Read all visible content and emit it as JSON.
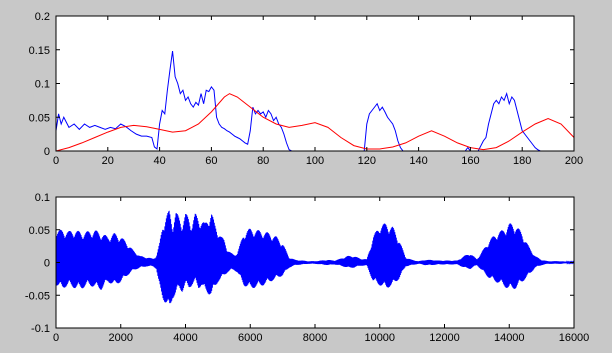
{
  "figure": {
    "background": "#c8c8c8",
    "axes_background": "#ffffff"
  },
  "chart_data": [
    {
      "type": "line",
      "title": "",
      "xlabel": "",
      "ylabel": "",
      "xlim": [
        0,
        200
      ],
      "ylim": [
        0,
        0.2
      ],
      "xticks": [
        0,
        20,
        40,
        60,
        80,
        100,
        120,
        140,
        160,
        180,
        200
      ],
      "yticks": [
        0,
        0.05,
        0.1,
        0.15,
        0.2
      ],
      "xtick_labels": [
        "0",
        "20",
        "40",
        "60",
        "80",
        "100",
        "120",
        "140",
        "160",
        "180",
        "200"
      ],
      "ytick_labels": [
        "0",
        "0.05",
        "0.1",
        "0.15",
        "0.2"
      ],
      "grid": false,
      "series": [
        {
          "color": "#0000ff",
          "x": [
            0,
            1,
            2,
            3,
            5,
            7,
            9,
            11,
            13,
            15,
            17,
            19,
            21,
            23,
            25,
            27,
            29,
            31,
            33,
            35,
            37,
            38,
            39,
            40,
            41,
            42,
            43,
            44,
            45,
            46,
            47,
            48,
            49,
            50,
            51,
            52,
            53,
            54,
            55,
            56,
            57,
            58,
            59,
            60,
            61,
            62,
            63,
            64,
            65,
            66,
            67,
            68,
            69,
            70,
            71,
            72,
            73,
            74,
            75,
            76,
            77,
            78,
            79,
            80,
            81,
            82,
            83,
            84,
            85,
            86,
            87,
            88,
            89,
            90,
            91,
            92,
            95,
            100,
            105,
            110,
            115,
            119,
            120,
            121,
            122,
            123,
            124,
            125,
            126,
            127,
            128,
            129,
            130,
            131,
            132,
            133,
            134,
            136,
            140,
            145,
            150,
            155,
            158,
            159,
            160,
            161,
            163,
            165,
            166,
            167,
            168,
            169,
            170,
            171,
            172,
            173,
            174,
            175,
            176,
            177,
            178,
            179,
            180,
            181,
            182,
            183,
            184,
            185,
            186,
            187,
            188,
            189,
            190,
            195,
            200
          ],
          "y": [
            0.03,
            0.055,
            0.04,
            0.05,
            0.035,
            0.04,
            0.032,
            0.04,
            0.035,
            0.038,
            0.035,
            0.032,
            0.035,
            0.033,
            0.04,
            0.036,
            0.03,
            0.025,
            0.022,
            0.022,
            0.02,
            0.006,
            0.003,
            0.04,
            0.06,
            0.055,
            0.09,
            0.12,
            0.148,
            0.11,
            0.1,
            0.085,
            0.09,
            0.075,
            0.08,
            0.07,
            0.065,
            0.072,
            0.068,
            0.085,
            0.07,
            0.09,
            0.088,
            0.095,
            0.09,
            0.05,
            0.04,
            0.035,
            0.033,
            0.03,
            0.028,
            0.025,
            0.022,
            0.02,
            0.018,
            0.015,
            0.012,
            0.01,
            0.03,
            0.065,
            0.055,
            0.06,
            0.055,
            0.058,
            0.05,
            0.06,
            0.055,
            0.045,
            0.05,
            0.04,
            0.035,
            0.025,
            0.012,
            0.002,
            0.0,
            0.0,
            0.0,
            0.0,
            0.0,
            0.0,
            0.0,
            0.0,
            0.04,
            0.055,
            0.06,
            0.065,
            0.07,
            0.06,
            0.065,
            0.058,
            0.05,
            0.045,
            0.04,
            0.03,
            0.015,
            0.005,
            0.0,
            0.0,
            0.0,
            0.0,
            0.0,
            0.0,
            0.0,
            0.005,
            0.0,
            0.0,
            0.0,
            0.015,
            0.02,
            0.04,
            0.055,
            0.07,
            0.075,
            0.07,
            0.08,
            0.075,
            0.085,
            0.07,
            0.08,
            0.075,
            0.06,
            0.045,
            0.03,
            0.025,
            0.02,
            0.015,
            0.01,
            0.005,
            0.002,
            0.0,
            0.0,
            0.0,
            0.0,
            0.0,
            0.0
          ]
        },
        {
          "color": "#ff0000",
          "x": [
            0,
            5,
            10,
            15,
            20,
            25,
            30,
            35,
            40,
            45,
            50,
            55,
            60,
            65,
            67,
            70,
            75,
            80,
            85,
            90,
            95,
            100,
            105,
            110,
            115,
            120,
            125,
            130,
            135,
            140,
            145,
            150,
            155,
            160,
            165,
            170,
            175,
            180,
            185,
            190,
            195,
            200
          ],
          "y": [
            0.0,
            0.005,
            0.012,
            0.02,
            0.028,
            0.035,
            0.038,
            0.036,
            0.032,
            0.028,
            0.03,
            0.04,
            0.058,
            0.08,
            0.085,
            0.08,
            0.065,
            0.05,
            0.04,
            0.035,
            0.038,
            0.042,
            0.035,
            0.02,
            0.008,
            0.003,
            0.003,
            0.006,
            0.012,
            0.022,
            0.03,
            0.022,
            0.012,
            0.005,
            0.002,
            0.005,
            0.015,
            0.028,
            0.04,
            0.048,
            0.04,
            0.02
          ]
        }
      ]
    },
    {
      "type": "line",
      "title": "",
      "xlabel": "",
      "ylabel": "",
      "xlim": [
        0,
        16000
      ],
      "ylim": [
        -0.1,
        0.1
      ],
      "xticks": [
        0,
        2000,
        4000,
        6000,
        8000,
        10000,
        12000,
        14000,
        16000
      ],
      "yticks": [
        -0.1,
        -0.05,
        0,
        0.05,
        0.1
      ],
      "xtick_labels": [
        "0",
        "2000",
        "4000",
        "6000",
        "8000",
        "10000",
        "12000",
        "14000",
        "16000"
      ],
      "ytick_labels": [
        "-0.1",
        "-0.05",
        "0",
        "0.05",
        "0.1"
      ],
      "grid": false,
      "series": [
        {
          "color": "#0000ff",
          "x": [
            0,
            200,
            400,
            600,
            800,
            1000,
            1200,
            1400,
            1600,
            1800,
            2000,
            2200,
            2400,
            2600,
            2800,
            3000,
            3100,
            3200,
            3300,
            3400,
            3500,
            3600,
            3700,
            3800,
            3900,
            4000,
            4100,
            4200,
            4300,
            4400,
            4500,
            4600,
            4700,
            4800,
            4900,
            5000,
            5100,
            5200,
            5300,
            5400,
            5500,
            5600,
            5700,
            5800,
            5900,
            6000,
            6200,
            6400,
            6600,
            6800,
            7000,
            7200,
            7400,
            7600,
            7800,
            8000,
            8200,
            8400,
            8600,
            8800,
            9000,
            9200,
            9400,
            9600,
            9800,
            10000,
            10200,
            10400,
            10600,
            10800,
            11000,
            11200,
            11400,
            11600,
            11800,
            12000,
            12200,
            12400,
            12600,
            12800,
            13000,
            13200,
            13400,
            13600,
            13800,
            14000,
            14200,
            14400,
            14600,
            14800,
            15000,
            15200,
            15400,
            15600,
            15800,
            16000
          ],
          "y_upper": [
            0.05,
            0.05,
            0.048,
            0.05,
            0.046,
            0.048,
            0.05,
            0.045,
            0.04,
            0.045,
            0.04,
            0.03,
            0.018,
            0.01,
            0.008,
            0.006,
            0.01,
            0.03,
            0.06,
            0.072,
            0.08,
            0.06,
            0.078,
            0.07,
            0.062,
            0.075,
            0.07,
            0.06,
            0.075,
            0.07,
            0.065,
            0.06,
            0.07,
            0.078,
            0.06,
            0.05,
            0.04,
            0.035,
            0.02,
            0.015,
            0.012,
            0.015,
            0.03,
            0.045,
            0.05,
            0.052,
            0.05,
            0.048,
            0.045,
            0.04,
            0.03,
            0.008,
            0.004,
            0.003,
            0.002,
            0.002,
            0.003,
            0.004,
            0.003,
            0.006,
            0.01,
            0.01,
            0.006,
            0.005,
            0.04,
            0.058,
            0.06,
            0.055,
            0.035,
            0.008,
            0.004,
            0.002,
            0.004,
            0.004,
            0.003,
            0.003,
            0.003,
            0.003,
            0.01,
            0.014,
            0.005,
            0.02,
            0.035,
            0.045,
            0.05,
            0.06,
            0.058,
            0.045,
            0.025,
            0.01,
            0.004,
            0.002,
            0.002,
            0.002,
            0.001,
            0.001
          ],
          "y_lower": [
            -0.035,
            -0.04,
            -0.035,
            -0.04,
            -0.04,
            -0.035,
            -0.038,
            -0.042,
            -0.03,
            -0.035,
            -0.03,
            -0.02,
            -0.012,
            -0.008,
            -0.006,
            -0.006,
            -0.01,
            -0.04,
            -0.055,
            -0.065,
            -0.075,
            -0.055,
            -0.05,
            -0.04,
            -0.045,
            -0.035,
            -0.04,
            -0.035,
            -0.03,
            -0.04,
            -0.035,
            -0.045,
            -0.048,
            -0.05,
            -0.04,
            -0.03,
            -0.025,
            -0.02,
            -0.015,
            -0.012,
            -0.012,
            -0.015,
            -0.025,
            -0.035,
            -0.038,
            -0.04,
            -0.038,
            -0.035,
            -0.03,
            -0.025,
            -0.02,
            -0.008,
            -0.004,
            -0.003,
            -0.002,
            -0.002,
            -0.003,
            -0.004,
            -0.003,
            -0.005,
            -0.008,
            -0.008,
            -0.005,
            -0.005,
            -0.03,
            -0.035,
            -0.04,
            -0.035,
            -0.025,
            -0.006,
            -0.004,
            -0.002,
            -0.004,
            -0.004,
            -0.003,
            -0.003,
            -0.003,
            -0.003,
            -0.008,
            -0.01,
            -0.004,
            -0.015,
            -0.025,
            -0.03,
            -0.035,
            -0.042,
            -0.04,
            -0.03,
            -0.02,
            -0.008,
            -0.004,
            -0.002,
            -0.002,
            -0.002,
            -0.001,
            -0.001
          ]
        }
      ]
    }
  ]
}
